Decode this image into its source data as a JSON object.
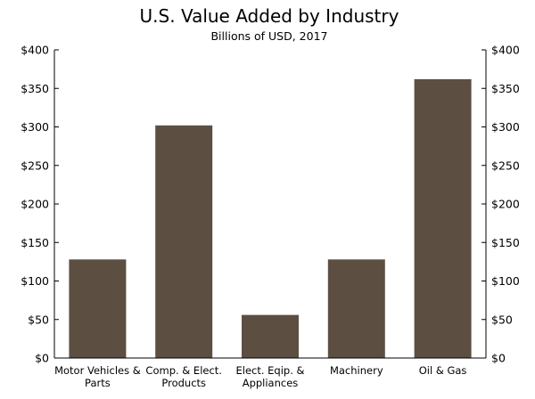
{
  "chart_data": {
    "type": "bar",
    "title": "U.S. Value Added by Industry",
    "subtitle": "Billions of USD, 2017",
    "xlabel": "",
    "ylabel": "",
    "categories": [
      [
        "Motor Vehicles &",
        "Parts"
      ],
      [
        "Comp. & Elect.",
        "Products"
      ],
      [
        "Elect. Eqip. &",
        "Appliances"
      ],
      [
        "Machinery"
      ],
      [
        "Oil & Gas"
      ]
    ],
    "values": [
      128,
      302,
      56,
      128,
      362
    ],
    "ylim": [
      0,
      400
    ],
    "yticks": [
      0,
      50,
      100,
      150,
      200,
      250,
      300,
      350,
      400
    ],
    "ytick_labels": [
      "$0",
      "$50",
      "$100",
      "$150",
      "$200",
      "$250",
      "$300",
      "$350",
      "$400"
    ],
    "grid": false,
    "axes": "both-left-and-right",
    "bar_color": "#5c4f42",
    "axis_color": "#000000"
  }
}
